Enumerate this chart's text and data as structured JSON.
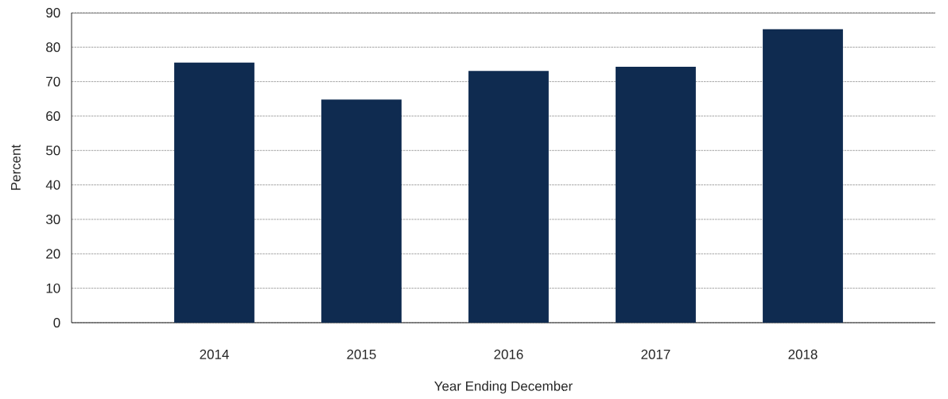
{
  "chart_data": {
    "type": "bar",
    "xlabel": "Year Ending December",
    "ylabel": "Percent",
    "categories": [
      "2014",
      "2015",
      "2016",
      "2017",
      "2018"
    ],
    "values": [
      75.5,
      64.8,
      73.1,
      74.3,
      85.2
    ],
    "color": "#0f2b50",
    "ylim": [
      0,
      90
    ],
    "yticks": [
      0,
      10,
      20,
      30,
      40,
      50,
      60,
      70,
      80,
      90
    ],
    "grid": "y"
  }
}
